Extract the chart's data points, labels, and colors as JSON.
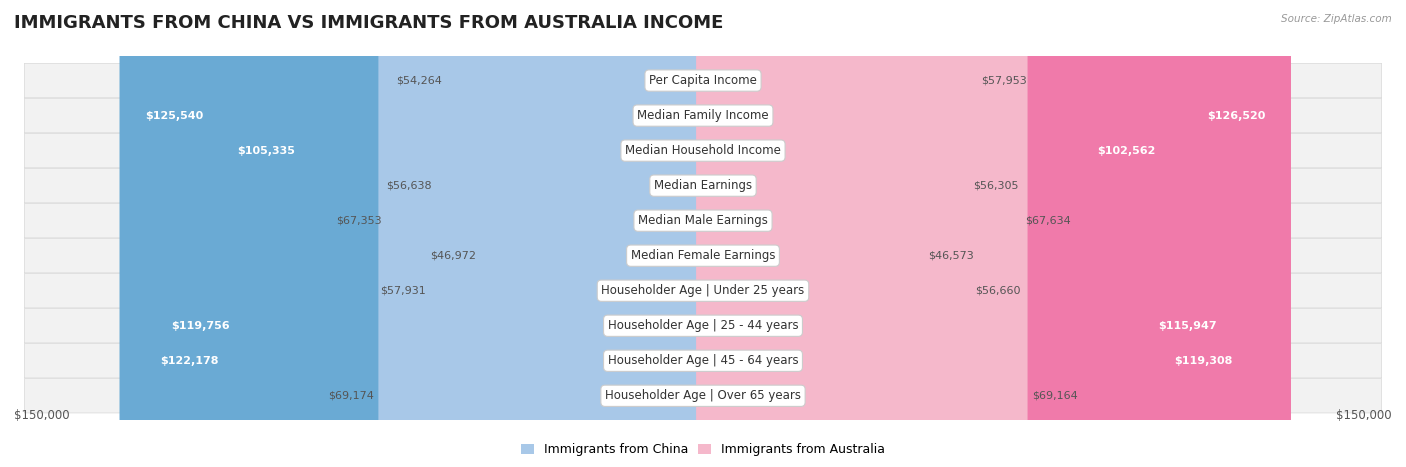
{
  "title": "IMMIGRANTS FROM CHINA VS IMMIGRANTS FROM AUSTRALIA INCOME",
  "source": "Source: ZipAtlas.com",
  "categories": [
    "Per Capita Income",
    "Median Family Income",
    "Median Household Income",
    "Median Earnings",
    "Median Male Earnings",
    "Median Female Earnings",
    "Householder Age | Under 25 years",
    "Householder Age | 25 - 44 years",
    "Householder Age | 45 - 64 years",
    "Householder Age | Over 65 years"
  ],
  "china_values": [
    54264,
    125540,
    105335,
    56638,
    67353,
    46972,
    57931,
    119756,
    122178,
    69174
  ],
  "australia_values": [
    57953,
    126520,
    102562,
    56305,
    67634,
    46573,
    56660,
    115947,
    119308,
    69164
  ],
  "china_color_light": "#a8c8e8",
  "china_color_strong": "#6aaad4",
  "australia_color_light": "#f5b8cb",
  "australia_color_strong": "#f07aaa",
  "china_label": "Immigrants from China",
  "australia_label": "Immigrants from Australia",
  "max_value": 150000,
  "title_fontsize": 13,
  "label_fontsize": 8.5,
  "value_fontsize": 8,
  "axis_label": "$150,000",
  "threshold_strong": 80000,
  "row_colors": [
    "#f8f8f8",
    "#f0f0f0"
  ]
}
